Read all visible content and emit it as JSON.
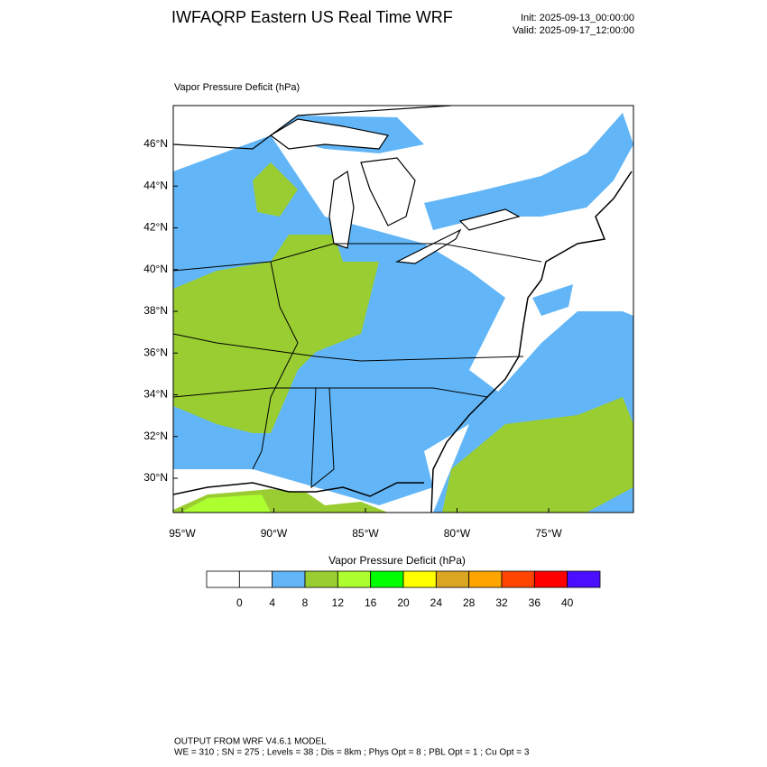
{
  "header": {
    "title": "IWFAQRP Eastern US Real Time WRF",
    "init": "Init: 2025-09-13_00:00:00",
    "valid": "Valid: 2025-09-17_12:00:00"
  },
  "map": {
    "title": "Vapor Pressure Deficit   (hPa)",
    "lat_labels": [
      "46°N",
      "44°N",
      "42°N",
      "40°N",
      "38°N",
      "36°N",
      "34°N",
      "32°N",
      "30°N"
    ],
    "lon_labels": [
      "95°W",
      "90°W",
      "85°W",
      "80°W",
      "75°W"
    ]
  },
  "colorbar": {
    "title": "Vapor Pressure Deficit   (hPa)",
    "labels": [
      "0",
      "4",
      "8",
      "12",
      "16",
      "20",
      "24",
      "28",
      "32",
      "36",
      "40"
    ],
    "colors": [
      "#ffffff",
      "#ffffff",
      "#62b6f7",
      "#9acd32",
      "#adff2f",
      "#00ff00",
      "#ffff00",
      "#daa520",
      "#ffa500",
      "#ff4500",
      "#ff0000",
      "#4a0fff"
    ]
  },
  "footer": {
    "line1": "OUTPUT FROM WRF V4.6.1 MODEL",
    "line2": "WE = 310 ; SN = 275 ; Levels = 38 ; Dis = 8km ; Phys Opt = 8 ; PBL Opt = 1 ; Cu Opt = 3"
  }
}
